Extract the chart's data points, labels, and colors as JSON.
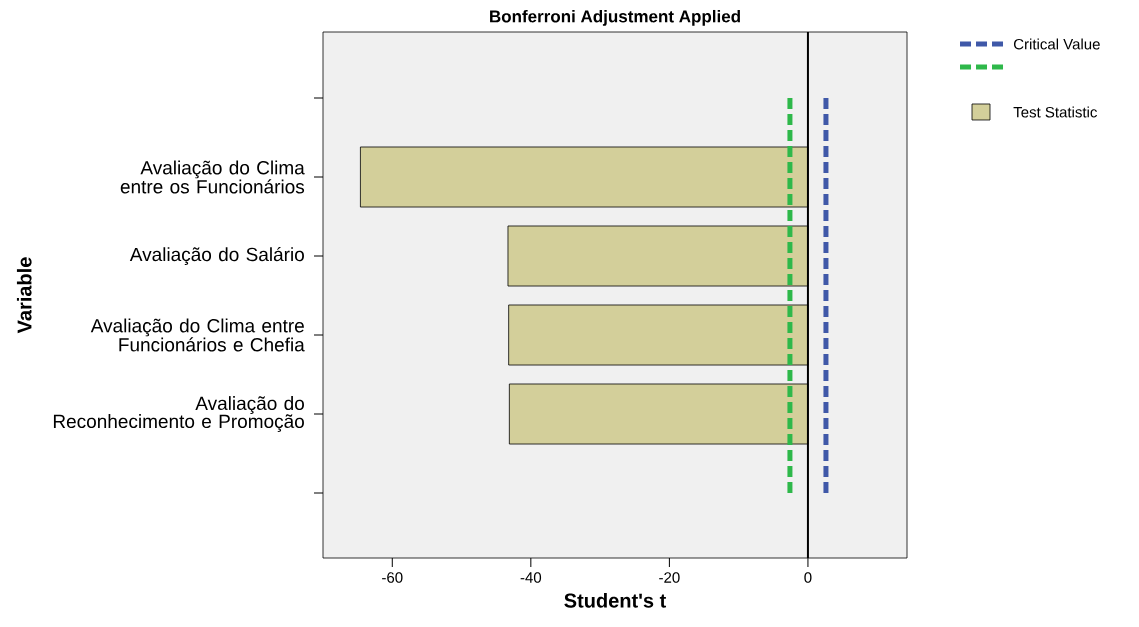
{
  "chart_data": {
    "type": "bar",
    "orientation": "horizontal",
    "title": "Bonferroni Adjustment Applied",
    "xlabel": "Student's t",
    "ylabel": "Variable",
    "categories": [
      null,
      "Avaliação do Clima entre os Funcionários",
      "Avaliação do Salário",
      "Avaliação do Clima entre Funcionários e Chefia",
      "Avaliação do Reconhecimento e Promoção",
      null
    ],
    "series": [
      {
        "name": "Test Statistic",
        "color": "#d3cf9a",
        "values": [
          null,
          -64.6,
          -43.3,
          -43.2,
          -43.1,
          null
        ]
      }
    ],
    "xlim": [
      -70,
      14.3
    ],
    "xticks": [
      -60,
      -40,
      -20,
      0
    ],
    "ref_lines": [
      {
        "axis": "x",
        "value": 0,
        "color": "#000000",
        "line_style": "solid"
      },
      {
        "axis": "x",
        "value": 2.6,
        "label": "Critical Value",
        "color": "#3f58a8",
        "line_style": "dashed"
      },
      {
        "axis": "x",
        "value": -2.6,
        "color": "#2eb84a",
        "line_style": "dashed"
      }
    ],
    "legend": "top right",
    "grid": false
  }
}
